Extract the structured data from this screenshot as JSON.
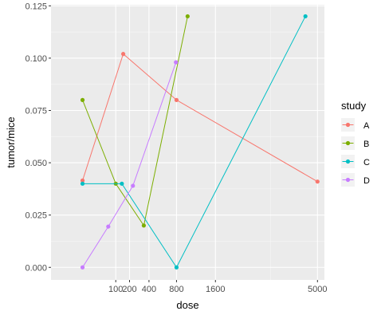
{
  "chart_data": {
    "type": "line",
    "xlabel": "dose",
    "ylabel": "tumor/mice",
    "x_scale": "sqrt",
    "xlim": [
      -90,
      5300
    ],
    "ylim": [
      -0.006,
      0.1255
    ],
    "x_ticks": [
      {
        "value": 100,
        "label": "100"
      },
      {
        "value": 200,
        "label": "200"
      },
      {
        "value": 400,
        "label": "400"
      },
      {
        "value": 800,
        "label": "800"
      },
      {
        "value": 1600,
        "label": "1600"
      },
      {
        "value": 5000,
        "label": "5000"
      }
    ],
    "x_minor_ticks": [
      3200
    ],
    "y_ticks": [
      0,
      0.025,
      0.05,
      0.075,
      0.1,
      0.125
    ],
    "y_tick_labels": [
      "0.000",
      "0.025",
      "0.050",
      "0.075",
      "0.100",
      "0.125"
    ],
    "legend": {
      "title": "study",
      "position": "right"
    },
    "series": [
      {
        "name": "A",
        "color": "#F8766D",
        "points": [
          [
            0,
            0.0415
          ],
          [
            150,
            0.102
          ],
          [
            800,
            0.08
          ],
          [
            5000,
            0.041
          ]
        ]
      },
      {
        "name": "B",
        "color": "#7CAE00",
        "points": [
          [
            0,
            0.08
          ],
          [
            100,
            0.04
          ],
          [
            340,
            0.02
          ],
          [
            1000,
            0.12
          ]
        ]
      },
      {
        "name": "C",
        "color": "#00BFC4",
        "points": [
          [
            0,
            0.04
          ],
          [
            140,
            0.04
          ],
          [
            800,
            0.0
          ],
          [
            4500,
            0.12
          ]
        ]
      },
      {
        "name": "D",
        "color": "#C77CFF",
        "points": [
          [
            0,
            0.0
          ],
          [
            60,
            0.0195
          ],
          [
            230,
            0.039
          ],
          [
            790,
            0.098
          ]
        ]
      }
    ]
  }
}
